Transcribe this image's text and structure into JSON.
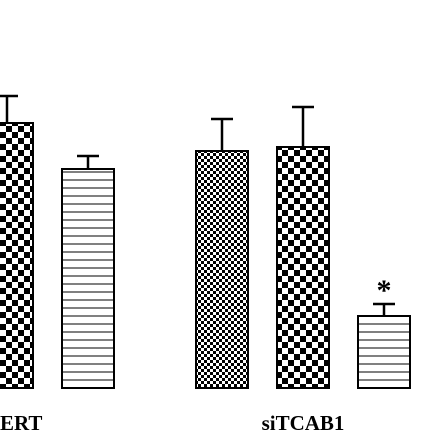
{
  "chart_data": {
    "type": "bar",
    "categories": [
      "ERT",
      "siTCAB1"
    ],
    "series": [
      {
        "name": null,
        "color": "#000000",
        "values": [
          null,
          237
        ],
        "errors": [
          null,
          32
        ]
      },
      {
        "name": null,
        "color": "#000000",
        "values": [
          265,
          241
        ],
        "errors": [
          27,
          40
        ]
      },
      {
        "name": null,
        "color": "#000000",
        "values": [
          219,
          72
        ],
        "errors": [
          13,
          12
        ]
      }
    ],
    "ylim": [
      0,
      388
    ],
    "annotations": [
      {
        "text": "*",
        "series": 2,
        "category": 1
      }
    ]
  }
}
